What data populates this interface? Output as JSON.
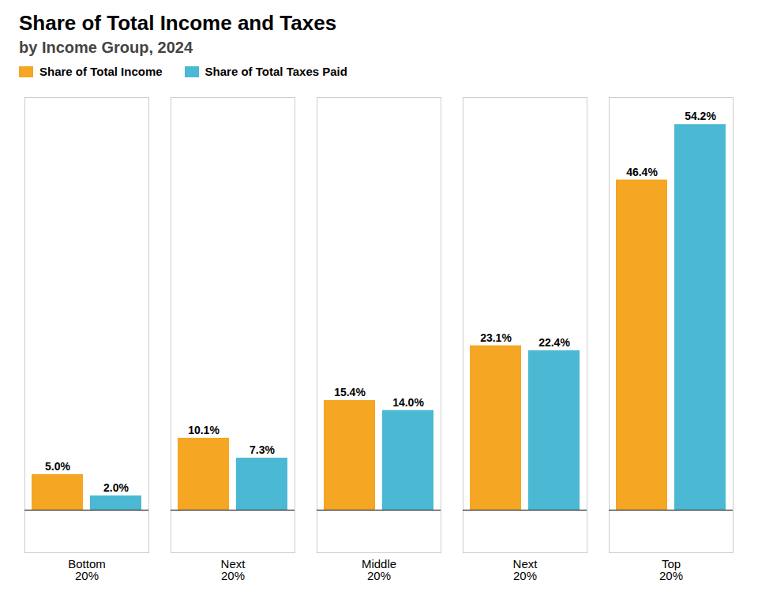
{
  "chart_data": {
    "type": "bar",
    "title": "Share of Total Income and Taxes",
    "subtitle": "by Income Group, 2024",
    "categories": [
      "Bottom\n20%",
      "Next\n20%",
      "Middle\n20%",
      "Next\n20%",
      "Top\n20%"
    ],
    "series": [
      {
        "name": "Share of Total Income",
        "color": "#F5A623",
        "values": [
          5.0,
          10.1,
          15.4,
          23.1,
          46.4
        ],
        "value_labels": [
          "5.0%",
          "10.1%",
          "15.4%",
          "23.1%",
          "46.4%"
        ]
      },
      {
        "name": "Share of Total Taxes Paid",
        "color": "#4BB8D4",
        "values": [
          2.0,
          7.3,
          14.0,
          22.4,
          54.2
        ],
        "value_labels": [
          "2.0%",
          "7.3%",
          "14.0%",
          "22.4%",
          "54.2%"
        ]
      }
    ],
    "ylim": [
      -6,
      58
    ],
    "tick_labels": "x",
    "grid": false,
    "legend": "upper left",
    "data_labels": true
  }
}
